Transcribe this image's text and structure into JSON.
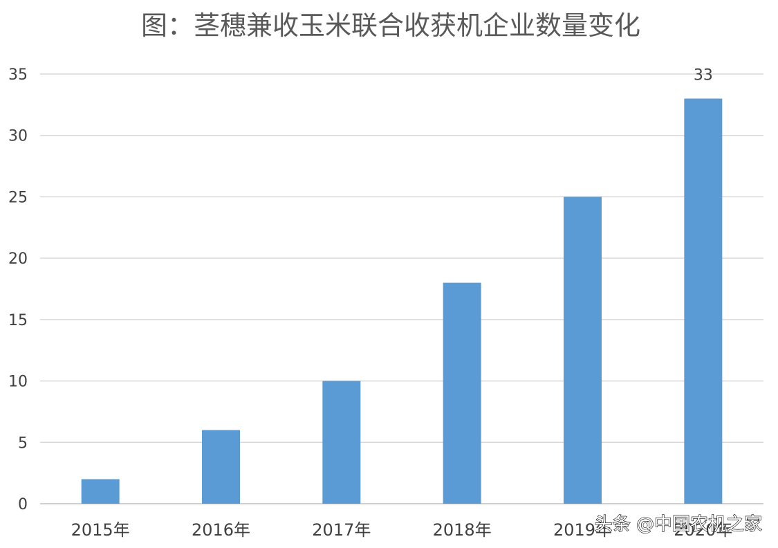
{
  "chart_data": {
    "type": "bar",
    "title": "图：茎穗兼收玉米联合收获机企业数量变化",
    "categories": [
      "2015年",
      "2016年",
      "2017年",
      "2018年",
      "2019年",
      "2020年"
    ],
    "values": [
      2,
      6,
      10,
      18,
      25,
      33
    ],
    "data_labels": [
      "",
      "",
      "",
      "",
      "",
      "33"
    ],
    "ylim": [
      0,
      35
    ],
    "yticks": [
      "0",
      "5",
      "10",
      "15",
      "20",
      "25",
      "30",
      "35"
    ],
    "xlabel": "",
    "ylabel": "",
    "grid": true,
    "legend": "none",
    "bar_color": "#5B9BD5",
    "grid_color": "#d9d9d9"
  },
  "watermark": "头条 @中国农机之家"
}
